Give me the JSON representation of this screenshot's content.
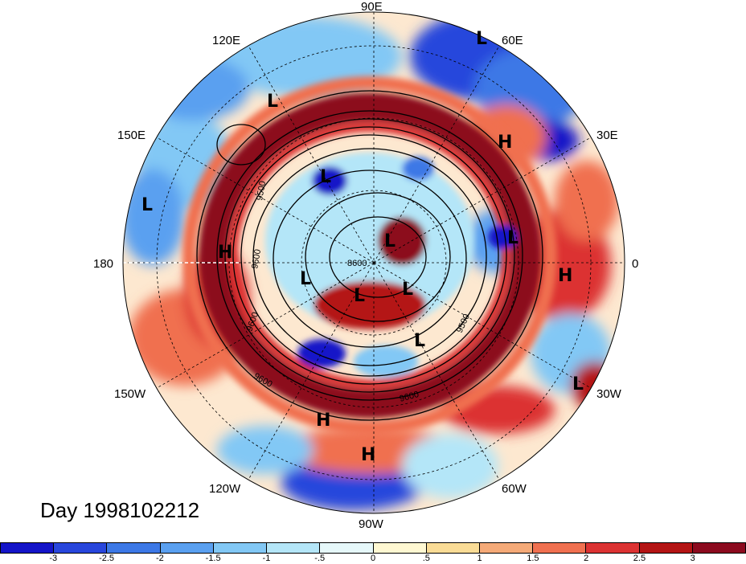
{
  "title": "Day 1998102212",
  "longitude_labels": {
    "lon_90e": "90E",
    "lon_60e": "60E",
    "lon_120e": "120E",
    "lon_150e": "150E",
    "lon_30e": "30E",
    "lon_180": "180",
    "lon_0": "0",
    "lon_150w": "150W",
    "lon_30w": "30W",
    "lon_120w": "120W",
    "lon_60w": "60W",
    "lon_90w": "90W"
  },
  "pressure_centers": [
    {
      "id": "l1",
      "label": "L"
    },
    {
      "id": "l2",
      "label": "L"
    },
    {
      "id": "h1",
      "label": "H"
    },
    {
      "id": "l3",
      "label": "L"
    },
    {
      "id": "l4",
      "label": "L"
    },
    {
      "id": "l5",
      "label": "L"
    },
    {
      "id": "l6",
      "label": "L"
    },
    {
      "id": "h2",
      "label": "H"
    },
    {
      "id": "h3",
      "label": "H"
    },
    {
      "id": "l7",
      "label": "L"
    },
    {
      "id": "l8",
      "label": "L"
    },
    {
      "id": "l9",
      "label": "L"
    },
    {
      "id": "l10",
      "label": "L"
    },
    {
      "id": "l11",
      "label": "L"
    },
    {
      "id": "h4",
      "label": "H"
    },
    {
      "id": "h5",
      "label": "H"
    }
  ],
  "contour_labels": {
    "c9500": "9500",
    "c9600a": "9600",
    "c9600b": "9600",
    "c9600c": "9600",
    "c8600": "8600",
    "c9600d": "9600",
    "c9500b": "9500"
  },
  "colorbar": {
    "colors": [
      "#1414c8",
      "#2846dc",
      "#3c78e6",
      "#5aa0f0",
      "#82c8f5",
      "#b4e6f8",
      "#e6f8fa",
      "#fff8d2",
      "#fadc96",
      "#f5aa78",
      "#f07050",
      "#dc3232",
      "#b41414",
      "#8c0a1e"
    ],
    "tick_labels": [
      "-3",
      "-2.5",
      "-2",
      "-1.5",
      "-1",
      "-.5",
      "0",
      ".5",
      "1",
      "1.5",
      "2",
      "2.5",
      "3"
    ]
  }
}
